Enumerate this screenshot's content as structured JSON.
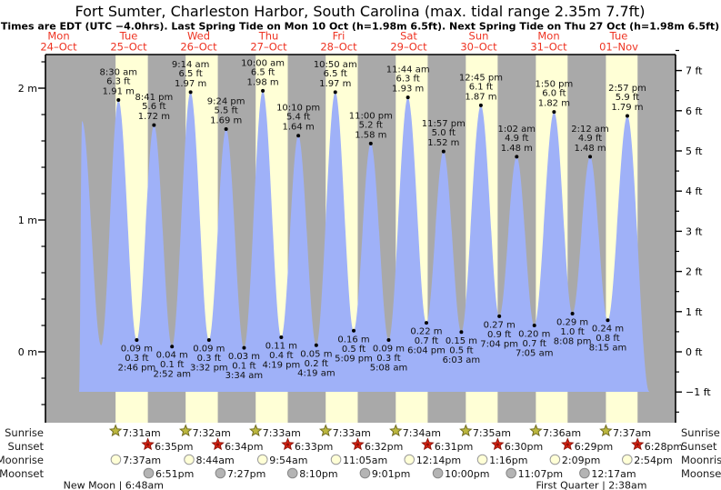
{
  "header": {
    "title": "Fort Sumter, Charleston Harbor, South Carolina (max. tidal range 2.35m 7.7ft)",
    "subtitle": "Times are EDT (UTC −4.0hrs). Last Spring Tide on Mon 10 Oct (h=1.98m 6.5ft). Next Spring Tide on Thu 27 Oct (h=1.98m 6.5ft)"
  },
  "chart_data": {
    "type": "area",
    "title": "Tide height curve with high/low tide annotations",
    "x_axis": {
      "days": [
        {
          "weekday": "Mon",
          "date": "24–Oct"
        },
        {
          "weekday": "Tue",
          "date": "25–Oct"
        },
        {
          "weekday": "Wed",
          "date": "26–Oct"
        },
        {
          "weekday": "Thu",
          "date": "27–Oct"
        },
        {
          "weekday": "Fri",
          "date": "28–Oct"
        },
        {
          "weekday": "Sat",
          "date": "29–Oct"
        },
        {
          "weekday": "Sun",
          "date": "30–Oct"
        },
        {
          "weekday": "Mon",
          "date": "31–Oct"
        },
        {
          "weekday": "Tue",
          "date": "01–Nov"
        }
      ]
    },
    "y_axis_left": {
      "unit": "m",
      "ticks": [
        {
          "label": "2 m",
          "m": 2
        },
        {
          "label": "1 m",
          "m": 1
        },
        {
          "label": "0 m",
          "m": 0
        }
      ]
    },
    "y_axis_right": {
      "unit": "ft",
      "ticks": [
        {
          "label": "7 ft",
          "ft": 7
        },
        {
          "label": "6 ft",
          "ft": 6
        },
        {
          "label": "5 ft",
          "ft": 5
        },
        {
          "label": "4 ft",
          "ft": 4
        },
        {
          "label": "3 ft",
          "ft": 3
        },
        {
          "label": "2 ft",
          "ft": 2
        },
        {
          "label": "1 ft",
          "ft": 1
        },
        {
          "label": "0 ft",
          "ft": 0
        },
        {
          "label": "−1 ft",
          "ft": -1
        }
      ]
    },
    "ylim_m": [
      -0.54,
      2.26
    ],
    "grid": false,
    "extremes": [
      {
        "kind": "high",
        "day": 0,
        "hour": 20.0,
        "height_m": 1.75,
        "labeled": false
      },
      {
        "kind": "low",
        "day": 1,
        "hour": 2.6,
        "height_m": 0.05,
        "labeled": false
      },
      {
        "kind": "high",
        "day": 1,
        "hour": 8.5,
        "height_m": 1.91,
        "labeled": true,
        "time": "8:30 am",
        "ft": "6.3 ft",
        "m": "1.91 m"
      },
      {
        "kind": "low",
        "day": 1,
        "hour": 14.767,
        "height_m": 0.09,
        "labeled": true,
        "time": "2:46 pm",
        "ft": "0.3 ft",
        "m": "0.09 m"
      },
      {
        "kind": "high",
        "day": 1,
        "hour": 20.683,
        "height_m": 1.72,
        "labeled": true,
        "time": "8:41 pm",
        "ft": "5.6 ft",
        "m": "1.72 m"
      },
      {
        "kind": "low",
        "day": 2,
        "hour": 2.867,
        "height_m": 0.04,
        "labeled": true,
        "time": "2:52 am",
        "ft": "0.1 ft",
        "m": "0.04 m"
      },
      {
        "kind": "high",
        "day": 2,
        "hour": 9.233,
        "height_m": 1.97,
        "labeled": true,
        "time": "9:14 am",
        "ft": "6.5 ft",
        "m": "1.97 m"
      },
      {
        "kind": "low",
        "day": 2,
        "hour": 15.533,
        "height_m": 0.09,
        "labeled": true,
        "time": "3:32 pm",
        "ft": "0.3 ft",
        "m": "0.09 m"
      },
      {
        "kind": "high",
        "day": 2,
        "hour": 21.4,
        "height_m": 1.69,
        "labeled": true,
        "time": "9:24 pm",
        "ft": "5.5 ft",
        "m": "1.69 m"
      },
      {
        "kind": "low",
        "day": 3,
        "hour": 3.567,
        "height_m": 0.03,
        "labeled": true,
        "time": "3:34 am",
        "ft": "0.1 ft",
        "m": "0.03 m"
      },
      {
        "kind": "high",
        "day": 3,
        "hour": 10.0,
        "height_m": 1.98,
        "labeled": true,
        "time": "10:00 am",
        "ft": "6.5 ft",
        "m": "1.98 m"
      },
      {
        "kind": "low",
        "day": 3,
        "hour": 16.317,
        "height_m": 0.11,
        "labeled": true,
        "time": "4:19 pm",
        "ft": "0.4 ft",
        "m": "0.11 m"
      },
      {
        "kind": "high",
        "day": 3,
        "hour": 22.167,
        "height_m": 1.64,
        "labeled": true,
        "time": "10:10 pm",
        "ft": "5.4 ft",
        "m": "1.64 m"
      },
      {
        "kind": "low",
        "day": 4,
        "hour": 4.317,
        "height_m": 0.05,
        "labeled": true,
        "time": "4:19 am",
        "ft": "0.2 ft",
        "m": "0.05 m"
      },
      {
        "kind": "high",
        "day": 4,
        "hour": 10.833,
        "height_m": 1.97,
        "labeled": true,
        "time": "10:50 am",
        "ft": "6.5 ft",
        "m": "1.97 m"
      },
      {
        "kind": "low",
        "day": 4,
        "hour": 17.15,
        "height_m": 0.16,
        "labeled": true,
        "time": "5:09 pm",
        "ft": "0.5 ft",
        "m": "0.16 m"
      },
      {
        "kind": "high",
        "day": 4,
        "hour": 23.0,
        "height_m": 1.58,
        "labeled": true,
        "time": "11:00 pm",
        "ft": "5.2 ft",
        "m": "1.58 m"
      },
      {
        "kind": "low",
        "day": 5,
        "hour": 5.133,
        "height_m": 0.09,
        "labeled": true,
        "time": "5:08 am",
        "ft": "0.3 ft",
        "m": "0.09 m"
      },
      {
        "kind": "high",
        "day": 5,
        "hour": 11.733,
        "height_m": 1.93,
        "labeled": true,
        "time": "11:44 am",
        "ft": "6.3 ft",
        "m": "1.93 m"
      },
      {
        "kind": "low",
        "day": 5,
        "hour": 18.067,
        "height_m": 0.22,
        "labeled": true,
        "time": "6:04 pm",
        "ft": "0.7 ft",
        "m": "0.22 m"
      },
      {
        "kind": "high",
        "day": 5,
        "hour": 23.95,
        "height_m": 1.52,
        "labeled": true,
        "time": "11:57 pm",
        "ft": "5.0 ft",
        "m": "1.52 m"
      },
      {
        "kind": "low",
        "day": 6,
        "hour": 6.05,
        "height_m": 0.15,
        "labeled": true,
        "time": "6:03 am",
        "ft": "0.5 ft",
        "m": "0.15 m"
      },
      {
        "kind": "high",
        "day": 6,
        "hour": 12.75,
        "height_m": 1.87,
        "labeled": true,
        "time": "12:45 pm",
        "ft": "6.1 ft",
        "m": "1.87 m"
      },
      {
        "kind": "low",
        "day": 6,
        "hour": 19.067,
        "height_m": 0.27,
        "labeled": true,
        "time": "7:04 pm",
        "ft": "0.9 ft",
        "m": "0.27 m"
      },
      {
        "kind": "high",
        "day": 7,
        "hour": 1.033,
        "height_m": 1.48,
        "labeled": true,
        "time": "1:02 am",
        "ft": "4.9 ft",
        "m": "1.48 m"
      },
      {
        "kind": "low",
        "day": 7,
        "hour": 7.083,
        "height_m": 0.2,
        "labeled": true,
        "time": "7:05 am",
        "ft": "0.7 ft",
        "m": "0.20 m"
      },
      {
        "kind": "high",
        "day": 7,
        "hour": 13.833,
        "height_m": 1.82,
        "labeled": true,
        "time": "1:50 pm",
        "ft": "6.0 ft",
        "m": "1.82 m"
      },
      {
        "kind": "low",
        "day": 7,
        "hour": 20.133,
        "height_m": 0.29,
        "labeled": true,
        "time": "8:08 pm",
        "ft": "1.0 ft",
        "m": "0.29 m"
      },
      {
        "kind": "high",
        "day": 8,
        "hour": 2.2,
        "height_m": 1.48,
        "labeled": true,
        "time": "2:12 am",
        "ft": "4.9 ft",
        "m": "1.48 m"
      },
      {
        "kind": "low",
        "day": 8,
        "hour": 8.25,
        "height_m": 0.24,
        "labeled": true,
        "time": "8:15 am",
        "ft": "0.8 ft",
        "m": "0.24 m"
      },
      {
        "kind": "high",
        "day": 8,
        "hour": 14.95,
        "height_m": 1.79,
        "labeled": true,
        "time": "2:57 pm",
        "ft": "5.9 ft",
        "m": "1.79 m"
      }
    ]
  },
  "events": {
    "row_labels": [
      "Sunrise",
      "Sunset",
      "Moonrise",
      "Moonset"
    ],
    "sunrise": [
      {
        "day": 1,
        "time": "7:31am",
        "hour": 7.517
      },
      {
        "day": 2,
        "time": "7:32am",
        "hour": 7.533
      },
      {
        "day": 3,
        "time": "7:33am",
        "hour": 7.55
      },
      {
        "day": 4,
        "time": "7:33am",
        "hour": 7.55
      },
      {
        "day": 5,
        "time": "7:34am",
        "hour": 7.567
      },
      {
        "day": 6,
        "time": "7:35am",
        "hour": 7.583
      },
      {
        "day": 7,
        "time": "7:36am",
        "hour": 7.6
      },
      {
        "day": 8,
        "time": "7:37am",
        "hour": 7.617
      }
    ],
    "sunset": [
      {
        "day": 1,
        "time": "6:35pm",
        "hour": 18.583
      },
      {
        "day": 2,
        "time": "6:34pm",
        "hour": 18.567
      },
      {
        "day": 3,
        "time": "6:33pm",
        "hour": 18.55
      },
      {
        "day": 4,
        "time": "6:32pm",
        "hour": 18.533
      },
      {
        "day": 5,
        "time": "6:31pm",
        "hour": 18.517
      },
      {
        "day": 6,
        "time": "6:30pm",
        "hour": 18.5
      },
      {
        "day": 7,
        "time": "6:29pm",
        "hour": 18.483
      },
      {
        "day": 8,
        "time": "6:28pm",
        "hour": 18.467
      }
    ],
    "moonrise": [
      {
        "day": 1,
        "time": "7:37am",
        "hour": 7.617
      },
      {
        "day": 2,
        "time": "8:44am",
        "hour": 8.733
      },
      {
        "day": 3,
        "time": "9:54am",
        "hour": 9.9
      },
      {
        "day": 4,
        "time": "11:05am",
        "hour": 11.083
      },
      {
        "day": 5,
        "time": "12:14pm",
        "hour": 12.233
      },
      {
        "day": 6,
        "time": "1:16pm",
        "hour": 13.267
      },
      {
        "day": 7,
        "time": "2:09pm",
        "hour": 14.15
      },
      {
        "day": 8,
        "time": "2:54pm",
        "hour": 14.9
      }
    ],
    "moonset": [
      {
        "day": 1,
        "time": "6:51pm",
        "hour": 18.85
      },
      {
        "day": 2,
        "time": "7:27pm",
        "hour": 19.45
      },
      {
        "day": 3,
        "time": "8:10pm",
        "hour": 20.167
      },
      {
        "day": 4,
        "time": "9:01pm",
        "hour": 21.017
      },
      {
        "day": 5,
        "time": "10:00pm",
        "hour": 22.0
      },
      {
        "day": 6,
        "time": "11:07pm",
        "hour": 23.117
      },
      {
        "day": 8,
        "time": "12:17am",
        "hour": 0.283
      }
    ],
    "moon_phases": [
      {
        "label": "New Moon",
        "time": "6:48am",
        "day": 1,
        "hour": 6.8
      },
      {
        "label": "First Quarter",
        "time": "2:38am",
        "day": 8,
        "hour": 2.633
      }
    ]
  },
  "colors": {
    "night_band": "#a9a9a9",
    "daylight_band": "#ffffd6",
    "water": "#9fb1f8",
    "day_label_red": "#ee3322",
    "sunrise_star": "#bdb83e",
    "sunrise_star_edge": "#6f6b20",
    "sunset_star": "#dd2514",
    "sunset_star_edge": "#8f1107",
    "moonrise_circle": "#ffffd6",
    "moonset_circle": "#b4b4b4"
  }
}
